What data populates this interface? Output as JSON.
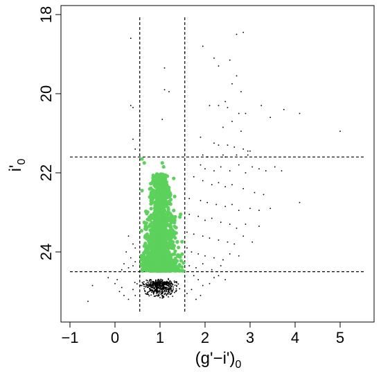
{
  "chart_data": {
    "type": "scatter",
    "title": "",
    "xlabel": "(g'−i')",
    "xlabel_sub": "0",
    "ylabel": "i'",
    "ylabel_sub": "0",
    "xlim": [
      -1.0,
      5.6
    ],
    "ylim": [
      25.8,
      17.75
    ],
    "y_inverted": true,
    "grid": false,
    "x_ticks": [
      -1,
      0,
      1,
      2,
      3,
      4,
      5
    ],
    "x_tick_labels": [
      "−1",
      "0",
      "1",
      "2",
      "3",
      "4",
      "5"
    ],
    "y_ticks": [
      18,
      20,
      22,
      24
    ],
    "y_tick_labels": [
      "18",
      "20",
      "22",
      "24"
    ],
    "cuts": {
      "color_min": 0.55,
      "color_max": 1.55,
      "mag_bright": 21.6,
      "mag_faint": 24.5,
      "line_style": "dashed"
    },
    "series": [
      {
        "marker": "small-dot",
        "color": "#000000",
        "points": [
          [
            0.35,
            18.6
          ],
          [
            1.1,
            19.9
          ],
          [
            1.2,
            19.95
          ],
          [
            1.1,
            19.35
          ],
          [
            1.55,
            18.95
          ],
          [
            0.35,
            20.3
          ],
          [
            0.4,
            20.35
          ],
          [
            1.05,
            20.65
          ],
          [
            0.4,
            21.15
          ],
          [
            0.55,
            21.0
          ],
          [
            0.45,
            21.4
          ],
          [
            2.7,
            18.5
          ],
          [
            2.85,
            18.45
          ],
          [
            1.95,
            18.8
          ],
          [
            2.2,
            19.1
          ],
          [
            2.3,
            19.3
          ],
          [
            2.55,
            19.15
          ],
          [
            2.7,
            19.55
          ],
          [
            2.6,
            19.75
          ],
          [
            2.8,
            19.95
          ],
          [
            2.1,
            20.3
          ],
          [
            2.3,
            20.3
          ],
          [
            2.5,
            20.35
          ],
          [
            2.45,
            20.2
          ],
          [
            2.75,
            20.5
          ],
          [
            2.9,
            20.5
          ],
          [
            2.6,
            20.7
          ],
          [
            3.25,
            20.3
          ],
          [
            3.45,
            20.6
          ],
          [
            3.75,
            20.4
          ],
          [
            4.1,
            20.5
          ],
          [
            5.0,
            20.95
          ],
          [
            2.4,
            20.85
          ],
          [
            2.8,
            20.95
          ],
          [
            1.9,
            21.1
          ],
          [
            2.2,
            21.25
          ],
          [
            2.3,
            21.3
          ],
          [
            2.5,
            21.3
          ],
          [
            2.65,
            21.35
          ],
          [
            2.85,
            21.4
          ],
          [
            2.95,
            21.45
          ],
          [
            1.95,
            21.55
          ],
          [
            2.05,
            21.6
          ],
          [
            2.4,
            21.55
          ],
          [
            2.45,
            21.6
          ],
          [
            2.7,
            21.55
          ],
          [
            2.95,
            21.55
          ],
          [
            3.0,
            21.45
          ],
          [
            1.9,
            21.8
          ],
          [
            2.0,
            21.9
          ],
          [
            2.2,
            21.95
          ],
          [
            2.35,
            21.85
          ],
          [
            2.55,
            21.95
          ],
          [
            2.75,
            21.8
          ],
          [
            2.9,
            22.0
          ],
          [
            3.05,
            21.85
          ],
          [
            3.2,
            21.9
          ],
          [
            3.35,
            21.95
          ],
          [
            3.55,
            21.85
          ],
          [
            3.7,
            21.95
          ],
          [
            1.75,
            22.1
          ],
          [
            1.95,
            22.2
          ],
          [
            2.15,
            22.3
          ],
          [
            2.3,
            22.25
          ],
          [
            2.45,
            22.35
          ],
          [
            2.6,
            22.3
          ],
          [
            2.85,
            22.4
          ],
          [
            3.1,
            22.5
          ],
          [
            3.3,
            22.55
          ],
          [
            1.65,
            22.65
          ],
          [
            1.9,
            22.7
          ],
          [
            2.05,
            22.75
          ],
          [
            2.25,
            22.8
          ],
          [
            2.45,
            22.85
          ],
          [
            2.6,
            22.8
          ],
          [
            2.75,
            22.95
          ],
          [
            3.0,
            22.9
          ],
          [
            3.2,
            22.95
          ],
          [
            3.45,
            22.9
          ],
          [
            4.1,
            22.75
          ],
          [
            1.65,
            23.05
          ],
          [
            1.85,
            23.1
          ],
          [
            2.0,
            23.2
          ],
          [
            2.15,
            23.15
          ],
          [
            2.35,
            23.25
          ],
          [
            2.55,
            23.3
          ],
          [
            2.7,
            23.4
          ],
          [
            2.9,
            23.3
          ],
          [
            3.2,
            23.35
          ],
          [
            1.6,
            23.5
          ],
          [
            1.75,
            23.55
          ],
          [
            1.95,
            23.6
          ],
          [
            2.1,
            23.65
          ],
          [
            2.3,
            23.7
          ],
          [
            2.5,
            23.75
          ],
          [
            2.65,
            23.8
          ],
          [
            2.85,
            23.6
          ],
          [
            3.05,
            23.75
          ],
          [
            1.6,
            23.9
          ],
          [
            1.7,
            24.0
          ],
          [
            1.85,
            24.05
          ],
          [
            2.0,
            24.1
          ],
          [
            2.2,
            24.15
          ],
          [
            2.4,
            24.2
          ],
          [
            2.55,
            24.05
          ],
          [
            2.75,
            24.1
          ],
          [
            1.65,
            24.35
          ],
          [
            1.8,
            24.4
          ],
          [
            1.95,
            24.3
          ],
          [
            2.15,
            24.45
          ],
          [
            2.35,
            24.35
          ],
          [
            0.3,
            23.6
          ],
          [
            0.4,
            23.8
          ],
          [
            0.45,
            23.9
          ],
          [
            0.25,
            24.0
          ],
          [
            0.35,
            24.15
          ],
          [
            0.45,
            24.25
          ],
          [
            0.2,
            24.3
          ],
          [
            0.3,
            24.4
          ],
          [
            0.15,
            24.45
          ],
          [
            0.4,
            24.35
          ],
          [
            -0.6,
            25.25
          ],
          [
            -0.5,
            24.85
          ],
          [
            0.05,
            24.7
          ],
          [
            -0.15,
            24.65
          ],
          [
            0.0,
            24.8
          ],
          [
            1.75,
            24.6
          ],
          [
            1.85,
            24.7
          ],
          [
            1.95,
            24.85
          ],
          [
            2.1,
            24.8
          ],
          [
            2.3,
            24.6
          ],
          [
            2.45,
            24.7
          ],
          [
            2.2,
            24.65
          ],
          [
            1.7,
            24.95
          ],
          [
            1.9,
            25.1
          ],
          [
            1.6,
            25.05
          ],
          [
            1.8,
            25.2
          ],
          [
            0.1,
            25.0
          ],
          [
            0.2,
            25.1
          ],
          [
            0.15,
            24.9
          ],
          [
            0.3,
            25.2
          ],
          [
            0.4,
            24.95
          ],
          [
            0.45,
            25.1
          ]
        ]
      },
      {
        "marker": "filled-circle",
        "color": "#5cd15c",
        "points": [
          [
            0.6,
            21.65
          ],
          [
            0.65,
            21.75
          ],
          [
            1.05,
            21.75
          ],
          [
            1.08,
            21.85
          ],
          [
            0.95,
            22.15
          ],
          [
            1.15,
            22.3
          ],
          [
            0.6,
            22.45
          ],
          [
            1.2,
            22.5
          ]
        ]
      }
    ]
  }
}
